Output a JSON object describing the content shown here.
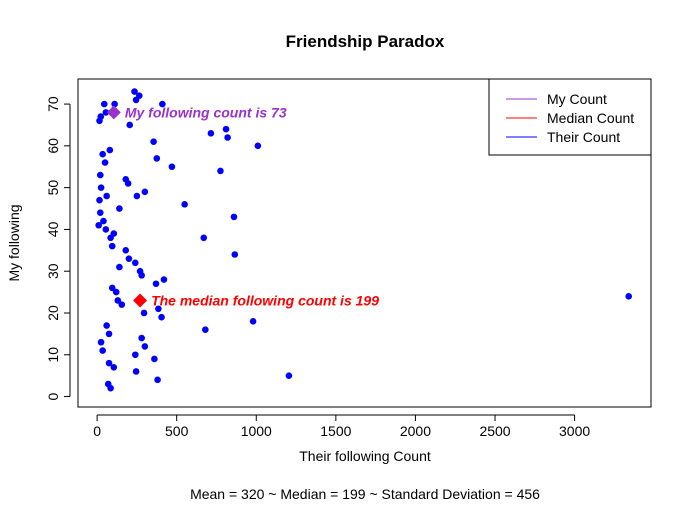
{
  "chart_data": {
    "type": "scatter",
    "title": "Friendship Paradox",
    "xlabel": "Their  following  Count",
    "ylabel": "My  following",
    "xlim": [
      -120,
      3480
    ],
    "ylim": [
      -2.5,
      76
    ],
    "xticks": [
      0,
      500,
      1000,
      1500,
      2000,
      2500,
      3000
    ],
    "yticks": [
      0,
      10,
      20,
      30,
      40,
      50,
      60,
      70
    ],
    "grid": false,
    "legend_position": "top-right",
    "legend": [
      {
        "label": "My Count",
        "color": "#9933cc"
      },
      {
        "label": "Median Count",
        "color": "#ff0000"
      },
      {
        "label": "Their Count",
        "color": "#0000ff"
      }
    ],
    "series": [
      {
        "name": "Their Count",
        "color": "#0000ff",
        "marker": "circle",
        "points": [
          [
            15,
            66
          ],
          [
            23,
            67
          ],
          [
            45,
            70
          ],
          [
            110,
            70
          ],
          [
            55,
            68
          ],
          [
            235,
            73
          ],
          [
            265,
            72
          ],
          [
            205,
            65
          ],
          [
            245,
            71
          ],
          [
            35,
            58
          ],
          [
            50,
            56
          ],
          [
            80,
            59
          ],
          [
            20,
            53
          ],
          [
            25,
            50
          ],
          [
            15,
            47
          ],
          [
            60,
            48
          ],
          [
            20,
            44
          ],
          [
            40,
            42
          ],
          [
            10,
            41
          ],
          [
            55,
            40
          ],
          [
            140,
            45
          ],
          [
            85,
            38
          ],
          [
            95,
            36
          ],
          [
            105,
            39
          ],
          [
            180,
            52
          ],
          [
            195,
            51
          ],
          [
            250,
            48
          ],
          [
            300,
            49
          ],
          [
            180,
            35
          ],
          [
            200,
            33
          ],
          [
            240,
            32
          ],
          [
            280,
            29
          ],
          [
            270,
            30
          ],
          [
            140,
            31
          ],
          [
            120,
            25
          ],
          [
            95,
            26
          ],
          [
            130,
            23
          ],
          [
            155,
            22
          ],
          [
            25,
            13
          ],
          [
            35,
            11
          ],
          [
            60,
            17
          ],
          [
            75,
            15
          ],
          [
            75,
            8
          ],
          [
            105,
            7
          ],
          [
            70,
            3
          ],
          [
            85,
            2
          ],
          [
            240,
            10
          ],
          [
            245,
            6
          ],
          [
            280,
            14
          ],
          [
            300,
            12
          ],
          [
            360,
            9
          ],
          [
            380,
            4
          ],
          [
            370,
            27
          ],
          [
            385,
            21
          ],
          [
            405,
            19
          ],
          [
            295,
            20
          ],
          [
            375,
            57
          ],
          [
            355,
            61
          ],
          [
            470,
            55
          ],
          [
            410,
            70
          ],
          [
            420,
            28
          ],
          [
            550,
            46
          ],
          [
            670,
            38
          ],
          [
            680,
            16
          ],
          [
            715,
            63
          ],
          [
            775,
            54
          ],
          [
            810,
            64
          ],
          [
            820,
            62
          ],
          [
            860,
            43
          ],
          [
            865,
            34
          ],
          [
            1010,
            60
          ],
          [
            980,
            18
          ],
          [
            1205,
            5
          ],
          [
            3340,
            24
          ]
        ]
      },
      {
        "name": "My Count",
        "color": "#9933cc",
        "marker": "diamond",
        "points": [
          [
            105,
            68
          ]
        ],
        "annotation": "My  following  count is 73"
      },
      {
        "name": "Median Count",
        "color": "#ff0000",
        "marker": "diamond",
        "points": [
          [
            270,
            23
          ]
        ],
        "annotation": "The median  following  count is 199"
      }
    ],
    "footer": "Mean =  320 ~ Median =  199 ~ Standard Deviation =  456"
  }
}
